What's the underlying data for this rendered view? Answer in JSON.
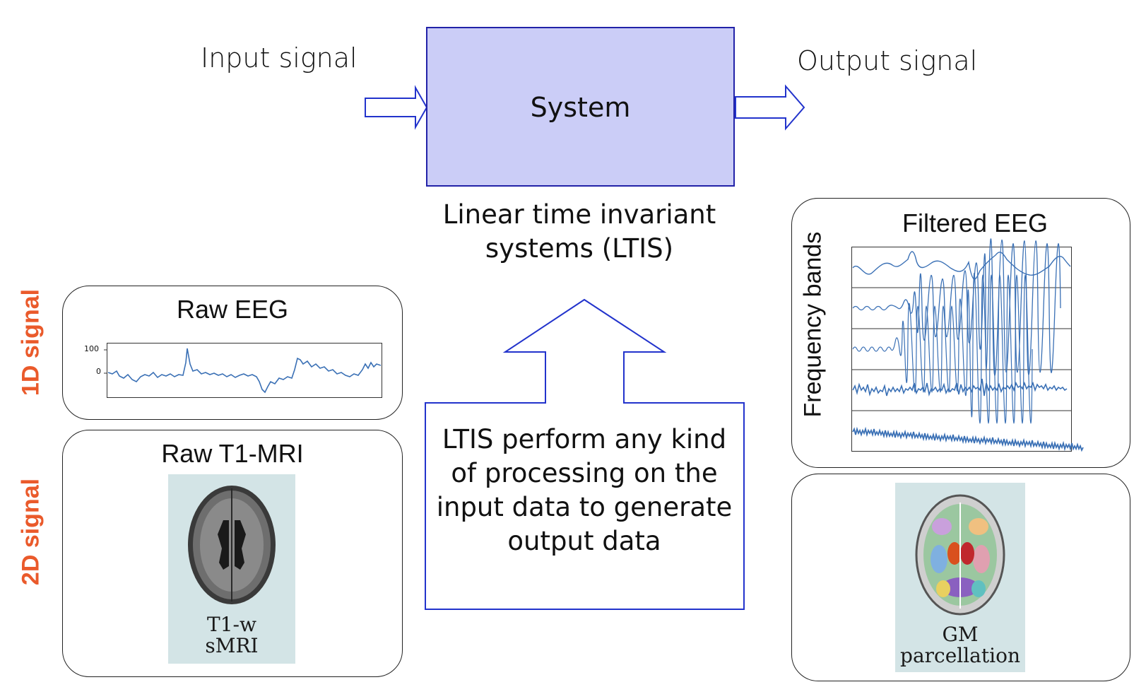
{
  "diagram": {
    "input_label": "Input signal",
    "output_label": "Output signal",
    "system_label": "System",
    "ltis_caption_line1": "Linear time invariant",
    "ltis_caption_line2": "systems (LTIS)",
    "callout": "LTIS perform any kind of processing on the input data to generate output data"
  },
  "left_panels": {
    "side_label_1d": "1D signal",
    "side_label_2d": "2D signal",
    "raw_eeg_title": "Raw EEG",
    "raw_eeg_ticks": [
      "100",
      "0"
    ],
    "raw_mri_title": "Raw T1-MRI",
    "mri_caption_line1": "T1-w",
    "mri_caption_line2": "sMRI"
  },
  "right_panels": {
    "filtered_eeg_title": "Filtered EEG",
    "frequency_axis_label": "Frequency bands",
    "gm_caption_line1": "GM",
    "gm_caption_line2": "parcellation"
  },
  "colors": {
    "system_fill": "#cbcdf7",
    "system_border": "#2222a8",
    "arrow_stroke": "#2233cc",
    "side_label": "#ea5a2b",
    "signal_line": "#3a70b5"
  }
}
